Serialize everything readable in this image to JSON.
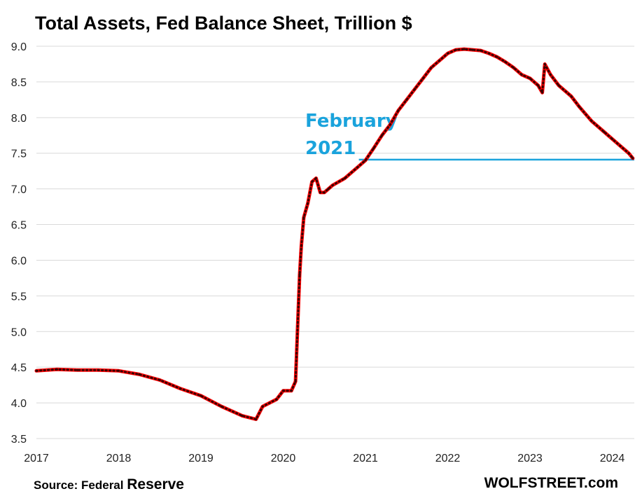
{
  "title": "Total Assets, Fed Balance Sheet, Trillion $",
  "source_prefix": "Source: Federal",
  "source_suffix": "Reserve",
  "site": "WOLFSTREET.com",
  "colors": {
    "line": "#ff0000",
    "markers": "#3a0000",
    "annotation": "#1aa3dc",
    "grid": "#d9d9d9"
  },
  "chart_data": {
    "type": "line",
    "title": "Total Assets, Fed Balance Sheet, Trillion $",
    "xlabel": "",
    "ylabel": "",
    "ylim": [
      3.5,
      9.0
    ],
    "xlim": [
      2017.0,
      2024.3
    ],
    "y_ticks": [
      "3.5",
      "4.0",
      "4.5",
      "5.0",
      "5.5",
      "6.0",
      "6.5",
      "7.0",
      "7.5",
      "8.0",
      "8.5",
      "9.0"
    ],
    "x_ticks": [
      "2017",
      "2018",
      "2019",
      "2020",
      "2021",
      "2022",
      "2023",
      "2024"
    ],
    "grid": "horizontal",
    "series": [
      {
        "x": [
          2017.0,
          2017.25,
          2017.5,
          2017.75,
          2018.0,
          2018.25,
          2018.5,
          2018.75,
          2019.0,
          2019.25,
          2019.5,
          2019.67,
          2019.75,
          2019.92,
          2020.0,
          2020.1,
          2020.15,
          2020.2,
          2020.22,
          2020.25,
          2020.3,
          2020.35,
          2020.4,
          2020.45,
          2020.5,
          2020.55,
          2020.6,
          2020.75,
          2020.9,
          2021.0,
          2021.1,
          2021.2,
          2021.3,
          2021.4,
          2021.5,
          2021.6,
          2021.7,
          2021.8,
          2021.9,
          2022.0,
          2022.1,
          2022.2,
          2022.3,
          2022.4,
          2022.5,
          2022.6,
          2022.7,
          2022.8,
          2022.9,
          2023.0,
          2023.1,
          2023.15,
          2023.18,
          2023.25,
          2023.35,
          2023.5,
          2023.6,
          2023.75,
          2023.9,
          2024.0,
          2024.1,
          2024.2,
          2024.25
        ],
        "y": [
          4.45,
          4.47,
          4.46,
          4.46,
          4.45,
          4.4,
          4.32,
          4.2,
          4.1,
          3.95,
          3.82,
          3.77,
          3.95,
          4.05,
          4.17,
          4.17,
          4.3,
          5.8,
          6.2,
          6.6,
          6.8,
          7.1,
          7.15,
          6.95,
          6.95,
          7.0,
          7.05,
          7.15,
          7.3,
          7.4,
          7.57,
          7.75,
          7.9,
          8.1,
          8.25,
          8.4,
          8.55,
          8.7,
          8.8,
          8.9,
          8.95,
          8.96,
          8.95,
          8.94,
          8.9,
          8.85,
          8.78,
          8.7,
          8.6,
          8.55,
          8.45,
          8.35,
          8.75,
          8.6,
          8.45,
          8.3,
          8.15,
          7.95,
          7.8,
          7.7,
          7.6,
          7.5,
          7.43
        ]
      }
    ],
    "annotation": {
      "text_line1": "February",
      "text_line2": "2021",
      "y": 7.41,
      "x_start": 2020.92,
      "x_end": 2024.3
    }
  }
}
